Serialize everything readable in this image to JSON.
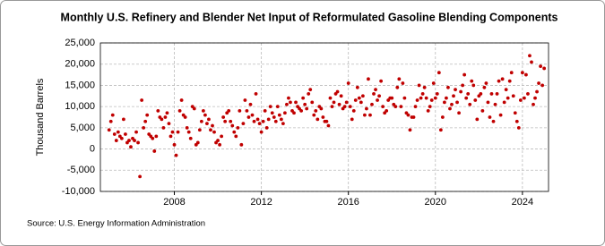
{
  "chart_data": {
    "type": "scatter",
    "title": "Monthly U.S. Refinery and Blender Net Input of Reformulated Gasoline Blending Components",
    "y_label": "Thousand Barrels",
    "source": "Source: U.S. Energy Information Administration",
    "color": "#c00000",
    "grid": true,
    "xlim": [
      2004.6,
      2025.2
    ],
    "xticks": [
      2008,
      2012,
      2016,
      2020,
      2024
    ],
    "ylim": [
      -10000,
      25000
    ],
    "yticks": [
      {
        "value": -10000,
        "label": "-10,000"
      },
      {
        "value": -5000,
        "label": "-5,000"
      },
      0,
      {
        "value": 5000,
        "label": "5,000"
      },
      {
        "value": 10000,
        "label": "10,000"
      },
      {
        "value": 15000,
        "label": "15,000"
      },
      {
        "value": 20000,
        "label": "20,000"
      },
      {
        "value": 25000,
        "label": "25,000"
      }
    ],
    "x": [
      2005,
      2005.083,
      2005.167,
      2005.25,
      2005.333,
      2005.417,
      2005.5,
      2005.583,
      2005.667,
      2005.75,
      2005.833,
      2005.917,
      2006,
      2006.083,
      2006.167,
      2006.25,
      2006.333,
      2006.417,
      2006.5,
      2006.583,
      2006.667,
      2006.75,
      2006.833,
      2006.917,
      2007,
      2007.083,
      2007.167,
      2007.25,
      2007.333,
      2007.417,
      2007.5,
      2007.583,
      2007.667,
      2007.75,
      2007.833,
      2007.917,
      2008,
      2008.083,
      2008.167,
      2008.25,
      2008.333,
      2008.417,
      2008.5,
      2008.583,
      2008.667,
      2008.75,
      2008.833,
      2008.917,
      2009,
      2009.083,
      2009.167,
      2009.25,
      2009.333,
      2009.417,
      2009.5,
      2009.583,
      2009.667,
      2009.75,
      2009.833,
      2009.917,
      2010,
      2010.083,
      2010.167,
      2010.25,
      2010.333,
      2010.417,
      2010.5,
      2010.583,
      2010.667,
      2010.75,
      2010.833,
      2010.917,
      2011,
      2011.083,
      2011.167,
      2011.25,
      2011.333,
      2011.417,
      2011.5,
      2011.583,
      2011.667,
      2011.75,
      2011.833,
      2011.917,
      2012,
      2012.083,
      2012.167,
      2012.25,
      2012.333,
      2012.417,
      2012.5,
      2012.583,
      2012.667,
      2012.75,
      2012.833,
      2012.917,
      2013,
      2013.083,
      2013.167,
      2013.25,
      2013.333,
      2013.417,
      2013.5,
      2013.583,
      2013.667,
      2013.75,
      2013.833,
      2013.917,
      2014,
      2014.083,
      2014.167,
      2014.25,
      2014.333,
      2014.417,
      2014.5,
      2014.583,
      2014.667,
      2014.75,
      2014.833,
      2014.917,
      2015,
      2015.083,
      2015.167,
      2015.25,
      2015.333,
      2015.417,
      2015.5,
      2015.583,
      2015.667,
      2015.75,
      2015.833,
      2015.917,
      2016,
      2016.083,
      2016.167,
      2016.25,
      2016.333,
      2016.417,
      2016.5,
      2016.583,
      2016.667,
      2016.75,
      2016.833,
      2016.917,
      2017,
      2017.083,
      2017.167,
      2017.25,
      2017.333,
      2017.417,
      2017.5,
      2017.583,
      2017.667,
      2017.75,
      2017.833,
      2017.917,
      2018,
      2018.083,
      2018.167,
      2018.25,
      2018.333,
      2018.417,
      2018.5,
      2018.583,
      2018.667,
      2018.75,
      2018.833,
      2018.917,
      2019,
      2019.083,
      2019.167,
      2019.25,
      2019.333,
      2019.417,
      2019.5,
      2019.583,
      2019.667,
      2019.75,
      2019.833,
      2019.917,
      2020,
      2020.083,
      2020.167,
      2020.25,
      2020.333,
      2020.417,
      2020.5,
      2020.583,
      2020.667,
      2020.75,
      2020.833,
      2020.917,
      2021,
      2021.083,
      2021.167,
      2021.25,
      2021.333,
      2021.417,
      2021.5,
      2021.583,
      2021.667,
      2021.75,
      2021.833,
      2021.917,
      2022,
      2022.083,
      2022.167,
      2022.25,
      2022.333,
      2022.417,
      2022.5,
      2022.583,
      2022.667,
      2022.75,
      2022.833,
      2022.917,
      2023,
      2023.083,
      2023.167,
      2023.25,
      2023.333,
      2023.417,
      2023.5,
      2023.583,
      2023.667,
      2023.75,
      2023.833,
      2023.917,
      2024,
      2024.083,
      2024.167,
      2024.25,
      2024.333,
      2024.417,
      2024.5,
      2024.583,
      2024.667,
      2024.75,
      2024.833,
      2024.917,
      2025
    ],
    "values": [
      4500,
      6500,
      8000,
      3500,
      2000,
      4000,
      3000,
      2500,
      7000,
      3500,
      1500,
      2000,
      500,
      2500,
      2000,
      4000,
      1500,
      -6500,
      11500,
      5000,
      6500,
      8000,
      3500,
      3000,
      2500,
      -500,
      3000,
      9000,
      7500,
      7000,
      5000,
      7500,
      8500,
      6000,
      3000,
      4000,
      1000,
      -1500,
      4000,
      9000,
      11500,
      8000,
      7500,
      5000,
      4000,
      2500,
      10000,
      9500,
      1000,
      1500,
      4500,
      6500,
      9000,
      8000,
      6000,
      7000,
      4500,
      5500,
      4000,
      1500,
      2000,
      1000,
      3000,
      7500,
      6500,
      8500,
      9000,
      6500,
      5500,
      4000,
      3000,
      5000,
      9000,
      1000,
      6000,
      11500,
      9000,
      7500,
      10500,
      8000,
      6500,
      13000,
      7000,
      6000,
      4000,
      6500,
      9000,
      5000,
      7000,
      10000,
      8500,
      7500,
      6500,
      10000,
      8000,
      7000,
      6000,
      8500,
      10500,
      12000,
      11000,
      9000,
      8500,
      11000,
      10000,
      9500,
      9000,
      12000,
      10500,
      9500,
      13000,
      14000,
      11000,
      8000,
      9000,
      7000,
      10000,
      9500,
      7500,
      6500,
      6500,
      5500,
      12000,
      10000,
      11000,
      13000,
      13500,
      10500,
      12500,
      9500,
      10000,
      11000,
      15500,
      10000,
      7000,
      9000,
      11500,
      14500,
      12000,
      11000,
      12500,
      8000,
      9500,
      16500,
      8000,
      10500,
      13000,
      14000,
      11500,
      12500,
      16000,
      10000,
      8500,
      9000,
      11500,
      12000,
      12000,
      10500,
      10000,
      14500,
      16500,
      10000,
      15500,
      12000,
      8500,
      8000,
      4500,
      7500,
      7500,
      10000,
      11500,
      15000,
      12000,
      13000,
      14500,
      12000,
      9000,
      10000,
      11500,
      15500,
      12000,
      13000,
      18000,
      4500,
      7500,
      11000,
      12000,
      14500,
      9500,
      10500,
      12500,
      14000,
      11000,
      8500,
      13500,
      15000,
      17500,
      12000,
      13000,
      10500,
      16000,
      15000,
      11500,
      7000,
      12500,
      13000,
      9000,
      14500,
      15500,
      11000,
      7500,
      13000,
      6500,
      10500,
      13000,
      16000,
      8000,
      16500,
      11000,
      14000,
      12000,
      16000,
      18000,
      12500,
      8500,
      6500,
      5000,
      11500,
      18000,
      12000,
      17500,
      13000,
      22000,
      20500,
      10500,
      12000,
      13500,
      15500,
      19500,
      15000,
      19000
    ]
  }
}
